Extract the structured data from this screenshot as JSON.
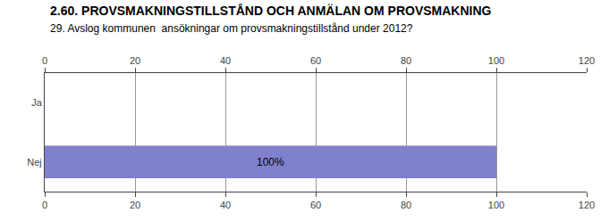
{
  "chart_data": {
    "type": "bar",
    "orientation": "horizontal",
    "title": "2.60. PROVSMAKNINGSTILLSTÅND OCH ANMÄLAN OM PROVSMAKNING",
    "subtitle": "29. Avslog kommunen  ansökningar om provsmakningstillstånd under 2012?",
    "categories": [
      "Ja",
      "Nej"
    ],
    "values": [
      0,
      100
    ],
    "value_labels": [
      null,
      "100%"
    ],
    "data_labels": true,
    "color": "#8080cc",
    "xlim": [
      0,
      120
    ],
    "xticks": [
      0,
      20,
      40,
      60,
      80,
      100,
      120
    ],
    "grid": true
  }
}
